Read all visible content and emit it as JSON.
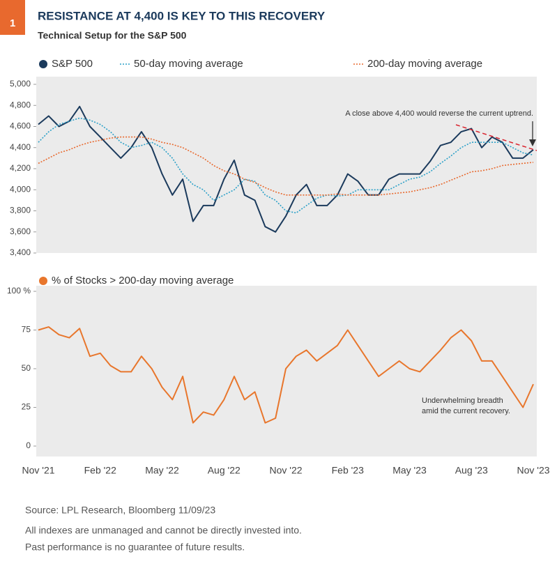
{
  "badge": "1",
  "title": "RESISTANCE AT 4,400 IS KEY TO THIS RECOVERY",
  "subtitle": "Technical Setup for the S&P 500",
  "footer": [
    "Source: LPL Research, Bloomberg 11/09/23",
    "All indexes are unmanaged and cannot be directly invested into.",
    "Past performance is no guarantee of future results."
  ],
  "chart_data": [
    {
      "type": "line",
      "series": [
        {
          "name": "S&P 500",
          "color": "#1b3a5c",
          "style": "solid",
          "values": [
            4620,
            4700,
            4600,
            4650,
            4790,
            4600,
            4500,
            4400,
            4300,
            4400,
            4550,
            4400,
            4150,
            3950,
            4100,
            3700,
            3850,
            3850,
            4100,
            4280,
            3950,
            3900,
            3650,
            3600,
            3750,
            3950,
            4050,
            3850,
            3850,
            3950,
            4150,
            4080,
            3950,
            3950,
            4100,
            4150,
            4150,
            4150,
            4270,
            4420,
            4450,
            4550,
            4580,
            4400,
            4500,
            4450,
            4300,
            4300,
            4380
          ]
        },
        {
          "name": "50-day moving average",
          "color": "#2aa0c8",
          "style": "dotted",
          "values": [
            4450,
            4550,
            4620,
            4650,
            4680,
            4660,
            4620,
            4550,
            4450,
            4400,
            4420,
            4450,
            4400,
            4300,
            4150,
            4050,
            4000,
            3900,
            3950,
            4000,
            4100,
            4080,
            3950,
            3900,
            3800,
            3780,
            3850,
            3920,
            3950,
            3940,
            3950,
            4000,
            4000,
            4000,
            4000,
            4050,
            4100,
            4120,
            4170,
            4250,
            4320,
            4400,
            4450,
            4450,
            4450,
            4450,
            4400,
            4350,
            4330
          ]
        },
        {
          "name": "200-day moving average",
          "color": "#e8692e",
          "style": "dotted",
          "values": [
            4250,
            4300,
            4350,
            4380,
            4420,
            4450,
            4470,
            4490,
            4500,
            4500,
            4500,
            4480,
            4450,
            4430,
            4400,
            4350,
            4300,
            4230,
            4180,
            4150,
            4100,
            4070,
            4020,
            3980,
            3950,
            3950,
            3950,
            3950,
            3950,
            3960,
            3950,
            3950,
            3950,
            3950,
            3960,
            3970,
            3980,
            4000,
            4020,
            4050,
            4090,
            4130,
            4170,
            4180,
            4200,
            4230,
            4240,
            4250,
            4260
          ]
        }
      ],
      "ylim": [
        3400,
        5000
      ],
      "yticks": [
        {
          "value": 3400,
          "label": "3,400"
        },
        {
          "value": 3600,
          "label": "3,600"
        },
        {
          "value": 3800,
          "label": "3,800"
        },
        {
          "value": 4000,
          "label": "4,000"
        },
        {
          "value": 4200,
          "label": "4,200"
        },
        {
          "value": 4400,
          "label": "4,400"
        },
        {
          "value": 4600,
          "label": "4,600"
        },
        {
          "value": 4800,
          "label": "4,800"
        },
        {
          "value": 5000,
          "label": "5,000"
        }
      ],
      "annotation": "A close above 4,400 would reverse the current uptrend."
    },
    {
      "type": "line",
      "categories": [
        "Nov '21",
        null,
        null,
        null,
        null,
        null,
        "Feb '22",
        null,
        null,
        null,
        null,
        null,
        "May '22",
        null,
        null,
        null,
        null,
        null,
        "Aug '22",
        null,
        null,
        null,
        null,
        null,
        "Nov '22",
        null,
        null,
        null,
        null,
        null,
        "Feb '23",
        null,
        null,
        null,
        null,
        null,
        "May '23",
        null,
        null,
        null,
        null,
        null,
        "Aug '23",
        null,
        null,
        null,
        null,
        null,
        "Nov '23"
      ],
      "series": [
        {
          "name": "% of Stocks > 200-day moving average",
          "color": "#e8762c",
          "style": "solid",
          "values": [
            75,
            77,
            72,
            70,
            76,
            58,
            60,
            52,
            48,
            48,
            58,
            50,
            38,
            30,
            45,
            15,
            22,
            20,
            30,
            45,
            30,
            35,
            15,
            18,
            50,
            58,
            62,
            55,
            60,
            65,
            75,
            65,
            55,
            45,
            50,
            55,
            50,
            48,
            55,
            62,
            70,
            75,
            68,
            55,
            55,
            45,
            35,
            25,
            40
          ]
        }
      ],
      "ylim": [
        0,
        100
      ],
      "yticks": [
        0,
        25,
        50,
        75,
        {
          "value": 100,
          "label": "100 %"
        }
      ],
      "annotation": [
        "Underwhelming breadth",
        "amid the current recovery."
      ]
    }
  ]
}
